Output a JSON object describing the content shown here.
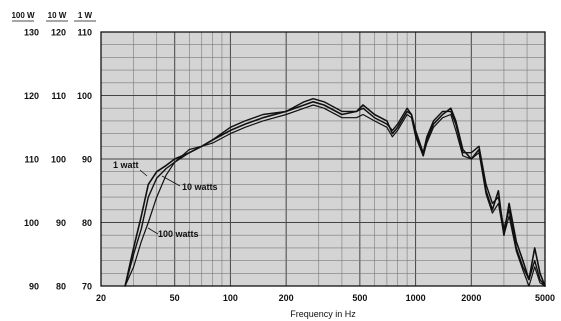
{
  "chart_data": {
    "type": "line",
    "title": "",
    "xlabel": "Frequency in Hz",
    "ylabel": "",
    "x_scale": "log",
    "xlim": [
      20,
      5000
    ],
    "ylim": [
      70,
      110
    ],
    "grid": true,
    "x_ticks": [
      "20",
      "50",
      "100",
      "200",
      "500",
      "1000",
      "2000",
      "5000"
    ],
    "y_axes": [
      {
        "header": "100 W",
        "ticks": [
          "130",
          "120",
          "110",
          "100",
          "90"
        ]
      },
      {
        "header": "10 W",
        "ticks": [
          "120",
          "110",
          "100",
          "90",
          "80"
        ]
      },
      {
        "header": "1 W",
        "ticks": [
          "110",
          "100",
          "90",
          "80",
          "70"
        ]
      }
    ],
    "annotations": [
      "1 watt",
      "10 watts",
      "100 watts"
    ],
    "series": [
      {
        "name": "1 watt",
        "x": [
          27,
          30,
          33,
          36,
          40,
          45,
          50,
          60,
          70,
          80,
          100,
          120,
          150,
          200,
          250,
          280,
          320,
          400,
          480,
          520,
          600,
          700,
          750,
          800,
          900,
          950,
          1000,
          1100,
          1150,
          1250,
          1400,
          1550,
          1650,
          1800,
          2000,
          2200,
          2400,
          2600,
          2800,
          3000,
          3200,
          3500,
          3800,
          4100,
          4400,
          4700,
          5000
        ],
        "y": [
          70,
          76,
          81,
          86,
          88,
          89,
          90,
          91,
          92,
          93,
          94.5,
          95.5,
          96.5,
          97.5,
          98.5,
          99,
          98.5,
          97,
          97.5,
          98.5,
          97,
          96,
          94,
          95,
          97.5,
          97,
          94,
          90.5,
          93,
          95.5,
          97,
          98,
          96,
          91.5,
          90,
          91.5,
          85,
          82,
          85,
          78,
          83,
          77,
          74,
          71,
          76,
          72,
          70
        ]
      },
      {
        "name": "10 watts",
        "x": [
          27,
          30,
          33,
          36,
          40,
          45,
          50,
          60,
          70,
          80,
          100,
          120,
          150,
          200,
          250,
          280,
          320,
          400,
          480,
          520,
          600,
          700,
          750,
          800,
          900,
          950,
          1000,
          1100,
          1150,
          1250,
          1400,
          1550,
          1650,
          1800,
          2000,
          2200,
          2400,
          2600,
          2800,
          3000,
          3200,
          3500,
          3800,
          4100,
          4400,
          4700,
          5000
        ],
        "y": [
          70,
          75,
          79,
          84,
          87,
          88.5,
          89.5,
          91,
          92,
          93,
          95,
          96,
          97,
          97.5,
          99,
          99.5,
          99,
          97.5,
          97.5,
          98,
          96.5,
          95.5,
          94.5,
          95.5,
          98,
          97,
          94.5,
          91,
          93.5,
          96,
          97.5,
          97.5,
          95.5,
          91,
          91,
          92,
          86,
          83,
          84,
          79,
          82,
          76,
          73,
          71,
          74,
          71,
          70
        ]
      },
      {
        "name": "100 watts",
        "x": [
          27,
          30,
          33,
          36,
          40,
          45,
          50,
          60,
          70,
          80,
          100,
          120,
          150,
          200,
          250,
          280,
          320,
          400,
          480,
          520,
          600,
          700,
          750,
          800,
          900,
          950,
          1000,
          1100,
          1150,
          1250,
          1400,
          1550,
          1650,
          1800,
          2000,
          2200,
          2400,
          2600,
          2800,
          3000,
          3200,
          3500,
          3800,
          4100,
          4400,
          4700,
          5000
        ],
        "y": [
          70,
          73,
          77,
          80,
          84,
          87.5,
          89.5,
          91.5,
          92,
          92.5,
          94,
          95,
          96,
          97,
          98,
          98.5,
          98,
          96.5,
          96.5,
          97,
          96,
          95,
          93.5,
          94.5,
          97,
          96.5,
          93.5,
          90.5,
          92.5,
          95,
          96.5,
          97,
          94.5,
          90.5,
          90,
          91,
          84.5,
          81.5,
          83,
          78,
          81,
          75.5,
          72.5,
          70,
          73,
          70.5,
          70
        ]
      }
    ]
  }
}
